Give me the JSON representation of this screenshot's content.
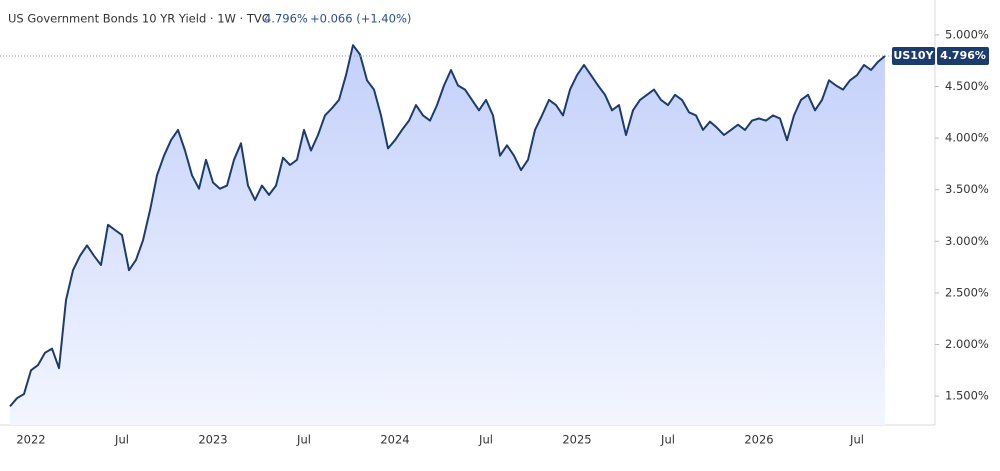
{
  "chart_data": {
    "type": "area",
    "title": "US Government Bonds 10 YR Yield · 1W · TVC",
    "price": "4.796%",
    "change": "+0.066 (+1.40%)",
    "symbol": "US10Y",
    "color": "#1c3c6e",
    "ylim": [
      1.22,
      5.29
    ],
    "yticks": [
      {
        "value": 1.5,
        "label": "1.500%"
      },
      {
        "value": 2,
        "label": "2.000%"
      },
      {
        "value": 2.5,
        "label": "2.500%"
      },
      {
        "value": 3,
        "label": "3.000%"
      },
      {
        "value": 3.5,
        "label": "3.500%"
      },
      {
        "value": 4,
        "label": "4.000%"
      },
      {
        "value": 4.5,
        "label": "4.500%"
      },
      {
        "value": 5,
        "label": "5.000%"
      }
    ],
    "categories": [
      null,
      null,
      null,
      "2022",
      null,
      null,
      null,
      null,
      null,
      null,
      null,
      null,
      null,
      null,
      null,
      null,
      "Jul",
      null,
      null,
      null,
      null,
      null,
      null,
      null,
      null,
      null,
      null,
      null,
      null,
      "2023",
      null,
      null,
      null,
      null,
      null,
      null,
      null,
      null,
      null,
      null,
      null,
      null,
      "Jul",
      null,
      null,
      null,
      null,
      null,
      null,
      null,
      null,
      null,
      null,
      null,
      null,
      "2024",
      null,
      null,
      null,
      null,
      null,
      null,
      null,
      null,
      null,
      null,
      null,
      null,
      "Jul",
      null,
      null,
      null,
      null,
      null,
      null,
      null,
      null,
      null,
      null,
      null,
      null,
      "2025",
      null,
      null,
      null,
      null,
      null,
      null,
      null,
      null,
      null,
      null,
      null,
      null,
      "Jul",
      null,
      null,
      null,
      null,
      null,
      null,
      null,
      null,
      null,
      null,
      null,
      null,
      "2026",
      null,
      null,
      null,
      null,
      null,
      null,
      null,
      null,
      null,
      null,
      null,
      null,
      null,
      "Jul",
      null,
      null,
      null,
      null
    ],
    "values": [
      1.4,
      1.48,
      1.52,
      1.75,
      1.8,
      1.92,
      1.96,
      1.77,
      2.43,
      2.72,
      2.86,
      2.96,
      2.86,
      2.77,
      3.16,
      3.11,
      3.06,
      2.72,
      2.82,
      3.01,
      3.3,
      3.64,
      3.83,
      3.98,
      4.08,
      3.88,
      3.64,
      3.51,
      3.79,
      3.57,
      3.51,
      3.54,
      3.79,
      3.95,
      3.54,
      3.4,
      3.54,
      3.45,
      3.54,
      3.81,
      3.74,
      3.79,
      4.08,
      3.88,
      4.03,
      4.22,
      4.29,
      4.37,
      4.61,
      4.9,
      4.81,
      4.56,
      4.47,
      4.22,
      3.9,
      3.98,
      4.08,
      4.17,
      4.32,
      4.22,
      4.17,
      4.32,
      4.51,
      4.66,
      4.51,
      4.47,
      4.37,
      4.27,
      4.37,
      4.22,
      3.83,
      3.93,
      3.83,
      3.69,
      3.79,
      4.08,
      4.22,
      4.37,
      4.32,
      4.22,
      4.47,
      4.61,
      4.71,
      4.61,
      4.51,
      4.42,
      4.27,
      4.32,
      4.03,
      4.27,
      4.37,
      4.42,
      4.47,
      4.37,
      4.32,
      4.42,
      4.37,
      4.25,
      4.22,
      4.08,
      4.16,
      4.1,
      4.03,
      4.08,
      4.13,
      4.08,
      4.17,
      4.19,
      4.17,
      4.22,
      4.19,
      3.98,
      4.22,
      4.37,
      4.42,
      4.27,
      4.37,
      4.56,
      4.51,
      4.47,
      4.56,
      4.61,
      4.71,
      4.66,
      4.74,
      4.796
    ]
  }
}
